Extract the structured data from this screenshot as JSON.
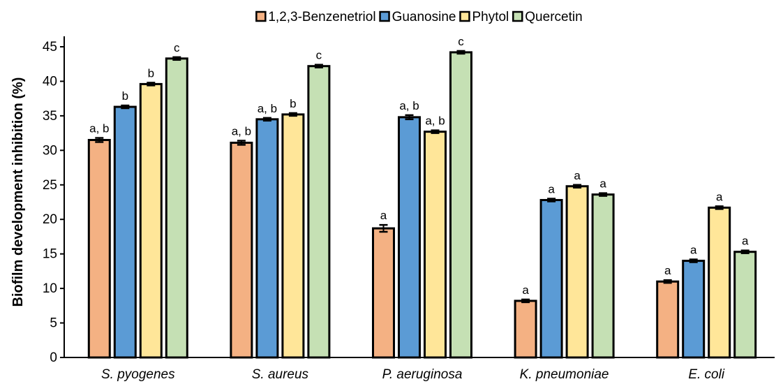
{
  "chart_data": {
    "type": "bar",
    "title": "",
    "xlabel": "",
    "ylabel": "Biofilm development inhibition (%)",
    "ylim": [
      0,
      45
    ],
    "yticks": [
      0,
      5,
      10,
      15,
      20,
      25,
      30,
      35,
      40,
      45
    ],
    "grid": false,
    "legend_position": "top",
    "categories": [
      "S. pyogenes",
      "S. aureus",
      "P. aeruginosa",
      "K. pneumoniae",
      "E. coli"
    ],
    "series": [
      {
        "name": "1,2,3-Benzenetriol",
        "color": "#F4B183",
        "values": [
          31.5,
          31.1,
          18.7,
          8.2,
          11.0
        ],
        "errors": [
          0.3,
          0.3,
          0.5,
          0.2,
          0.2
        ],
        "labels": [
          "a, b",
          "a, b",
          "a",
          "a",
          "a"
        ]
      },
      {
        "name": "Guanosine",
        "color": "#5B9BD5",
        "values": [
          36.3,
          34.5,
          34.8,
          22.8,
          14.0
        ],
        "errors": [
          0.2,
          0.2,
          0.3,
          0.2,
          0.2
        ],
        "labels": [
          "b",
          "a, b",
          "a, b",
          "a",
          "a"
        ]
      },
      {
        "name": "Phytol",
        "color": "#FFE699",
        "values": [
          39.6,
          35.2,
          32.7,
          24.8,
          21.7
        ],
        "errors": [
          0.2,
          0.2,
          0.2,
          0.2,
          0.2
        ],
        "labels": [
          "b",
          "b",
          "a, b",
          "a",
          "a"
        ]
      },
      {
        "name": "Quercetin",
        "color": "#C5E0B4",
        "values": [
          43.3,
          42.2,
          44.2,
          23.6,
          15.3
        ],
        "errors": [
          0.2,
          0.2,
          0.2,
          0.2,
          0.2
        ],
        "labels": [
          "c",
          "c",
          "c",
          "a",
          "a"
        ]
      }
    ]
  }
}
